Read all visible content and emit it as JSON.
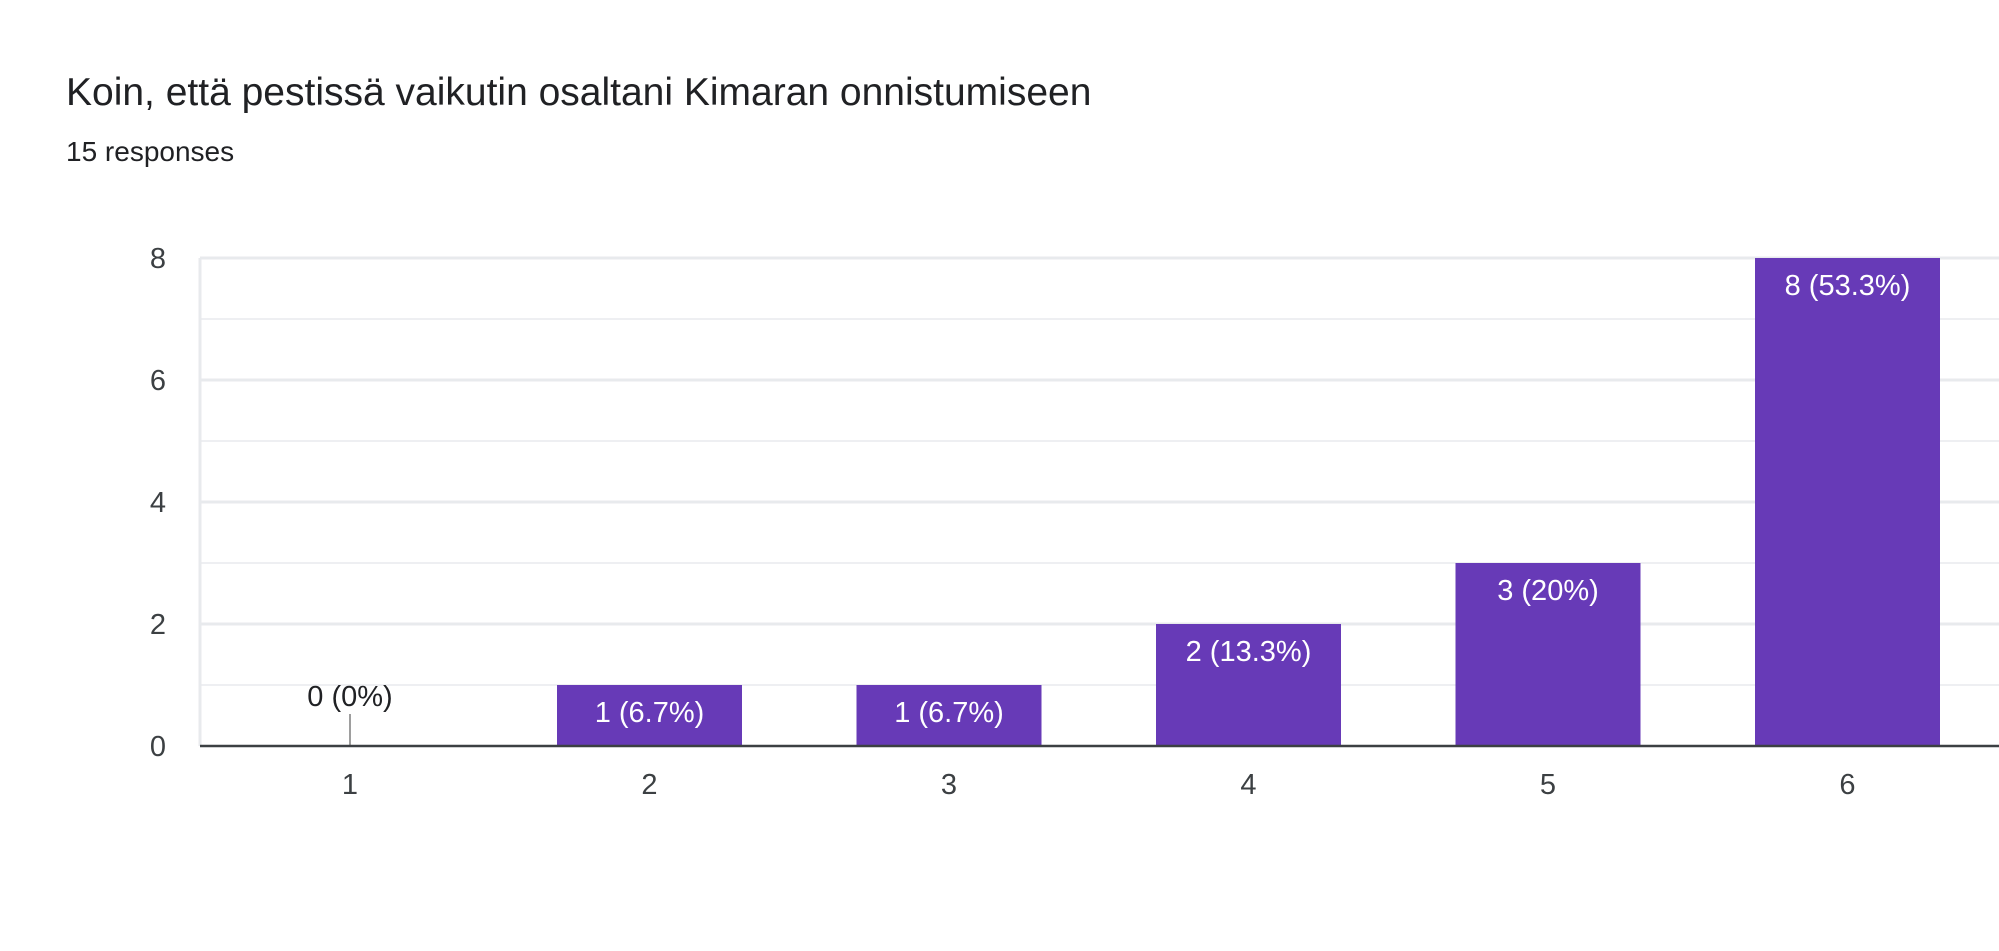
{
  "header": {
    "title": "Koin, että pestissä vaikutin osaltani Kimaran onnistumiseen",
    "responses": "15 responses"
  },
  "colors": {
    "bar": "#673ab7",
    "bar_label": "#ffffff",
    "zero_label": "#202124",
    "grid": "#e8eaed",
    "axis": "#3c4043"
  },
  "chart_data": {
    "type": "bar",
    "title": "Koin, että pestissä vaikutin osaltani Kimaran onnistumiseen",
    "xlabel": "",
    "ylabel": "",
    "categories": [
      "1",
      "2",
      "3",
      "4",
      "5",
      "6"
    ],
    "values": [
      0,
      1,
      1,
      2,
      3,
      8
    ],
    "data_labels": [
      "0 (0%)",
      "1 (6.7%)",
      "1 (6.7%)",
      "2 (13.3%)",
      "3 (20%)",
      "8 (53.3%)"
    ],
    "yticks": [
      "0",
      "2",
      "4",
      "6",
      "8"
    ],
    "ylim": [
      0,
      8
    ],
    "grid": true,
    "legend": "none"
  }
}
